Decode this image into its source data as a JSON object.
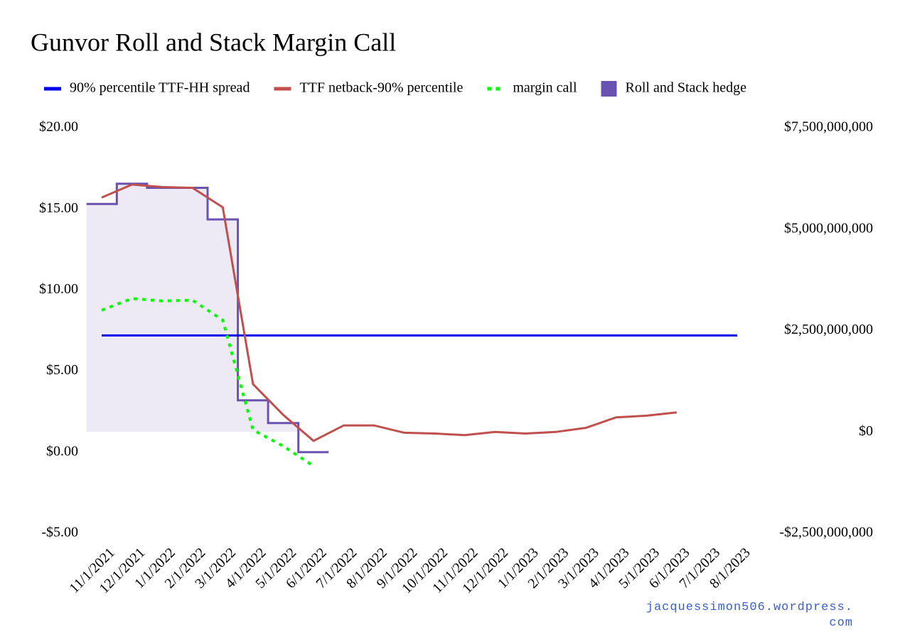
{
  "chart_data": {
    "type": "line",
    "title": "Gunvor Roll and Stack Margin Call",
    "watermark": "jacquessimon506.wordpress.com",
    "categories": [
      "11/1/2021",
      "12/1/2021",
      "1/1/2022",
      "2/1/2022",
      "3/1/2022",
      "4/1/2022",
      "5/1/2022",
      "6/1/2022",
      "7/1/2022",
      "8/1/2022",
      "9/1/2022",
      "10/1/2022",
      "11/1/2022",
      "12/1/2022",
      "1/1/2023",
      "2/1/2023",
      "3/1/2023",
      "4/1/2023",
      "5/1/2023",
      "6/1/2023",
      "7/1/2023",
      "8/1/2023"
    ],
    "ylim": [
      -5,
      20
    ],
    "yticks": [
      {
        "value": -5,
        "label": "-$5.00"
      },
      {
        "value": 0,
        "label": "$0.00"
      },
      {
        "value": 5,
        "label": "$5.00"
      },
      {
        "value": 10,
        "label": "$10.00"
      },
      {
        "value": 15,
        "label": "$15.00"
      },
      {
        "value": 20,
        "label": "$20.00"
      }
    ],
    "y2lim": [
      -2500000000,
      7500000000
    ],
    "y2ticks": [
      {
        "value": -2500000000,
        "label": "-$2,500,000,000"
      },
      {
        "value": 0,
        "label": "$0"
      },
      {
        "value": 2500000000,
        "label": "$2,500,000,000"
      },
      {
        "value": 5000000000,
        "label": "$5,000,000,000"
      },
      {
        "value": 7500000000,
        "label": "$7,500,000,000"
      }
    ],
    "series": [
      {
        "name": "90% percentile TTF-HH spread",
        "color": "#0000ee",
        "style": "line",
        "values": [
          7.2,
          7.2,
          7.2,
          7.2,
          7.2,
          7.2,
          7.2,
          7.2,
          7.2,
          7.2,
          7.2,
          7.2,
          7.2,
          7.2,
          7.2,
          7.2,
          7.2,
          7.2,
          7.2,
          7.2,
          7.2,
          7.2
        ]
      },
      {
        "name": "TTF netback-90% percentile",
        "color": "#c0504d",
        "style": "line",
        "values": [
          15.7,
          16.5,
          16.35,
          16.3,
          15.1,
          4.2,
          2.3,
          0.7,
          1.65,
          1.65,
          1.2,
          1.15,
          1.05,
          1.25,
          1.15,
          1.25,
          1.5,
          2.15,
          2.25,
          2.45,
          null,
          null
        ]
      },
      {
        "name": "margin call",
        "color": "#00ff00",
        "style": "dotted",
        "axis": "y2",
        "values": [
          3000000000,
          3290000000,
          3230000000,
          3250000000,
          2760000000,
          50000000,
          -350000000,
          -840000000,
          null,
          null,
          null,
          null,
          null,
          null,
          null,
          null,
          null,
          null,
          null,
          null,
          null,
          null
        ]
      },
      {
        "name": "Roll and Stack hedge",
        "color": "#6a52b0",
        "style": "step-area",
        "values": [
          15.3,
          16.55,
          16.3,
          16.3,
          14.35,
          3.2,
          1.8,
          0.0,
          null,
          null,
          null,
          null,
          null,
          null,
          null,
          null,
          null,
          null,
          null,
          null,
          null,
          null
        ]
      }
    ]
  }
}
